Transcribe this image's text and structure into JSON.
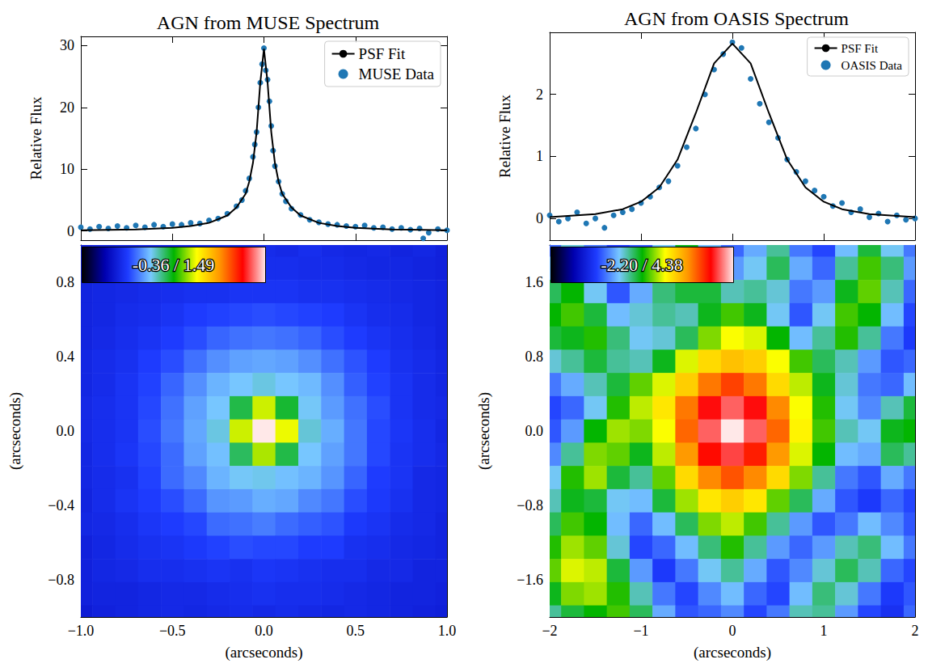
{
  "chart_data": [
    {
      "type": "scatter",
      "title": "AGN from MUSE Spectrum",
      "ylabel": "Relative Flux",
      "xlim": [
        -1,
        1
      ],
      "xticks": [
        -1,
        -0.5,
        0,
        0.5,
        1
      ],
      "ylim": [
        -1.5,
        31.5
      ],
      "yticks": [
        0,
        10,
        20,
        30
      ],
      "tick_labels": "y",
      "legend": "upper right",
      "series": [
        {
          "name": "PSF Fit",
          "type": "line",
          "color": "#000000",
          "x": [
            -1,
            -0.7,
            -0.5,
            -0.4,
            -0.3,
            -0.2,
            -0.15,
            -0.1,
            -0.08,
            -0.06,
            -0.04,
            -0.02,
            0,
            0.02,
            0.04,
            0.06,
            0.08,
            0.1,
            0.15,
            0.2,
            0.3,
            0.4,
            0.5,
            0.7,
            1
          ],
          "values": [
            0.1,
            0.25,
            0.5,
            0.8,
            1.3,
            2.5,
            3.8,
            6,
            8,
            11,
            16,
            24,
            29.5,
            24,
            16,
            11,
            8,
            6,
            3.8,
            2.5,
            1.3,
            0.8,
            0.5,
            0.25,
            0.1
          ]
        },
        {
          "name": "MUSE Data",
          "type": "scatter",
          "color": "#1f77b4",
          "x": [
            -1,
            -0.95,
            -0.9,
            -0.85,
            -0.8,
            -0.75,
            -0.7,
            -0.65,
            -0.6,
            -0.55,
            -0.5,
            -0.45,
            -0.4,
            -0.35,
            -0.3,
            -0.25,
            -0.2,
            -0.15,
            -0.12,
            -0.1,
            -0.08,
            -0.06,
            -0.05,
            -0.04,
            -0.03,
            -0.02,
            -0.01,
            0,
            0.01,
            0.02,
            0.03,
            0.04,
            0.05,
            0.06,
            0.08,
            0.1,
            0.12,
            0.15,
            0.2,
            0.25,
            0.3,
            0.35,
            0.4,
            0.45,
            0.5,
            0.55,
            0.6,
            0.65,
            0.7,
            0.75,
            0.8,
            0.85,
            0.87,
            0.9,
            0.95,
            1
          ],
          "values": [
            0.6,
            0.3,
            0.7,
            0.4,
            0.8,
            0.5,
            0.9,
            0.6,
            1.0,
            0.7,
            1.1,
            1.0,
            1.3,
            1.2,
            1.7,
            2.0,
            2.8,
            4.0,
            5.0,
            6.5,
            8.5,
            12,
            14,
            16,
            20,
            24,
            27,
            29.6,
            26,
            24.5,
            21,
            17,
            13,
            10.5,
            8,
            6,
            4.8,
            3.6,
            2.6,
            1.8,
            1.4,
            1.1,
            1.0,
            0.8,
            0.7,
            0.9,
            0.5,
            0.6,
            0.3,
            0.5,
            0.2,
            0.4,
            -1.2,
            -0.3,
            0.3,
            0.1
          ]
        }
      ]
    },
    {
      "type": "heatmap",
      "xlabel": "(arcseconds)",
      "ylabel": "(arcseconds)",
      "xlim": [
        -1,
        1
      ],
      "xticks": [
        {
          "value": -1,
          "label": "−1.0"
        },
        {
          "value": -0.5,
          "label": "−0.5"
        },
        {
          "value": 0,
          "label": "0.0"
        },
        0.5,
        {
          "value": 1,
          "label": "1.0"
        }
      ],
      "ylim": [
        -1,
        1
      ],
      "yticks": [
        {
          "value": -0.8,
          "label": "−0.8"
        },
        {
          "value": -0.4,
          "label": "−0.4"
        },
        {
          "value": 0,
          "label": "0.0"
        },
        0.4,
        0.8
      ],
      "colorbar_range": [
        -0.36,
        1.49
      ],
      "colorbar_label": "-0.36 / 1.49",
      "x": [
        -1,
        -0.875,
        -0.75,
        -0.625,
        -0.5,
        -0.375,
        -0.25,
        -0.125,
        0,
        0.125,
        0.25,
        0.375,
        0.5,
        0.625,
        0.75,
        0.875,
        1
      ],
      "y": [
        1,
        0.875,
        0.75,
        0.625,
        0.5,
        0.375,
        0.25,
        0.125,
        0,
        -0.125,
        -0.25,
        -0.375,
        -0.5,
        -0.625,
        -0.75,
        -0.875,
        -1
      ],
      "cells": [
        [
          0.0,
          0.01,
          0.02,
          0.03,
          0.02,
          0.03,
          0.04,
          0.03,
          0.04,
          0.03,
          0.05,
          0.03,
          0.02,
          0.03,
          0.01,
          0.02,
          0.0
        ],
        [
          0.0,
          0.01,
          0.02,
          0.02,
          0.03,
          0.04,
          0.04,
          0.05,
          0.05,
          0.05,
          0.04,
          0.04,
          0.03,
          0.02,
          0.02,
          0.01,
          0.0
        ],
        [
          0.01,
          0.02,
          0.03,
          0.04,
          0.05,
          0.06,
          0.06,
          0.07,
          0.07,
          0.07,
          0.06,
          0.06,
          0.05,
          0.04,
          0.03,
          0.02,
          0.01
        ],
        [
          0.01,
          0.02,
          0.04,
          0.05,
          0.07,
          0.1,
          0.11,
          0.12,
          0.13,
          0.12,
          0.11,
          0.1,
          0.07,
          0.05,
          0.04,
          0.02,
          0.01
        ],
        [
          0.01,
          0.03,
          0.05,
          0.07,
          0.1,
          0.13,
          0.17,
          0.19,
          0.2,
          0.19,
          0.17,
          0.13,
          0.1,
          0.07,
          0.05,
          0.03,
          0.01
        ],
        [
          0.02,
          0.04,
          0.06,
          0.1,
          0.13,
          0.19,
          0.24,
          0.27,
          0.28,
          0.27,
          0.24,
          0.19,
          0.14,
          0.1,
          0.06,
          0.04,
          0.02
        ],
        [
          0.02,
          0.04,
          0.07,
          0.11,
          0.17,
          0.24,
          0.3,
          0.33,
          0.36,
          0.33,
          0.31,
          0.24,
          0.16,
          0.11,
          0.07,
          0.04,
          0.02
        ],
        [
          0.03,
          0.05,
          0.07,
          0.12,
          0.19,
          0.27,
          0.33,
          0.5,
          0.75,
          0.52,
          0.34,
          0.26,
          0.19,
          0.13,
          0.07,
          0.04,
          0.03
        ],
        [
          0.03,
          0.05,
          0.07,
          0.13,
          0.2,
          0.28,
          0.36,
          0.75,
          1.49,
          0.78,
          0.37,
          0.29,
          0.2,
          0.12,
          0.08,
          0.05,
          0.02
        ],
        [
          0.02,
          0.05,
          0.08,
          0.12,
          0.18,
          0.27,
          0.32,
          0.48,
          0.72,
          0.5,
          0.33,
          0.27,
          0.2,
          0.12,
          0.07,
          0.05,
          0.03
        ],
        [
          0.02,
          0.04,
          0.06,
          0.11,
          0.18,
          0.23,
          0.3,
          0.34,
          0.35,
          0.32,
          0.3,
          0.25,
          0.17,
          0.1,
          0.07,
          0.03,
          0.02
        ],
        [
          0.01,
          0.04,
          0.07,
          0.1,
          0.13,
          0.18,
          0.25,
          0.26,
          0.29,
          0.28,
          0.23,
          0.2,
          0.13,
          0.09,
          0.06,
          0.03,
          0.02
        ],
        [
          0.02,
          0.03,
          0.05,
          0.08,
          0.1,
          0.12,
          0.18,
          0.19,
          0.21,
          0.18,
          0.16,
          0.14,
          0.09,
          0.07,
          0.04,
          0.03,
          0.01
        ],
        [
          0.0,
          0.02,
          0.04,
          0.06,
          0.07,
          0.09,
          0.11,
          0.13,
          0.12,
          0.12,
          0.1,
          0.1,
          0.06,
          0.05,
          0.03,
          0.02,
          0.01
        ],
        [
          0.0,
          0.02,
          0.03,
          0.05,
          0.05,
          0.06,
          0.07,
          0.06,
          0.08,
          0.07,
          0.06,
          0.05,
          0.05,
          0.03,
          0.03,
          0.01,
          0.01
        ],
        [
          0.0,
          0.01,
          0.01,
          0.02,
          0.03,
          0.03,
          0.04,
          0.05,
          0.06,
          0.05,
          0.05,
          0.04,
          0.03,
          0.02,
          0.01,
          0.01,
          0.0
        ],
        [
          -0.02,
          0.0,
          0.01,
          0.02,
          0.03,
          0.02,
          0.03,
          0.04,
          0.03,
          0.04,
          0.03,
          0.02,
          0.03,
          0.02,
          0.01,
          0.0,
          -0.01
        ]
      ]
    },
    {
      "type": "scatter",
      "title": "AGN from OASIS Spectrum",
      "ylabel": "Relative Flux",
      "xlim": [
        -2,
        2
      ],
      "xticks": [
        -2,
        -1,
        0,
        1,
        2
      ],
      "ylim": [
        -0.35,
        3.0
      ],
      "yticks": [
        0,
        1,
        2
      ],
      "tick_labels": "y",
      "legend": "upper right",
      "series": [
        {
          "name": "PSF Fit",
          "type": "line",
          "color": "#000000",
          "x": [
            -2,
            -1.5,
            -1.2,
            -1,
            -0.8,
            -0.6,
            -0.4,
            -0.2,
            0,
            0.2,
            0.4,
            0.6,
            0.8,
            1,
            1.2,
            1.5,
            2
          ],
          "values": [
            0.02,
            0.07,
            0.15,
            0.27,
            0.5,
            0.95,
            1.7,
            2.5,
            2.82,
            2.5,
            1.7,
            0.95,
            0.5,
            0.27,
            0.15,
            0.07,
            0.02
          ]
        },
        {
          "name": "OASIS Data",
          "type": "scatter",
          "color": "#1f77b4",
          "x": [
            -2,
            -1.9,
            -1.8,
            -1.7,
            -1.6,
            -1.5,
            -1.4,
            -1.3,
            -1.2,
            -1.1,
            -1.0,
            -0.9,
            -0.8,
            -0.7,
            -0.6,
            -0.5,
            -0.4,
            -0.3,
            -0.2,
            -0.1,
            0,
            0.1,
            0.2,
            0.3,
            0.4,
            0.5,
            0.6,
            0.7,
            0.8,
            0.9,
            1.0,
            1.1,
            1.2,
            1.3,
            1.4,
            1.5,
            1.6,
            1.7,
            1.8,
            1.9,
            2.0
          ],
          "values": [
            0.05,
            -0.05,
            0.0,
            0.1,
            -0.08,
            0.0,
            -0.15,
            0.05,
            0.1,
            0.15,
            0.25,
            0.35,
            0.5,
            0.6,
            0.85,
            1.15,
            1.45,
            2.0,
            2.4,
            2.65,
            2.84,
            2.75,
            2.25,
            1.85,
            1.55,
            1.3,
            0.95,
            0.75,
            0.6,
            0.45,
            0.35,
            0.2,
            0.25,
            0.1,
            0.15,
            0.02,
            0.08,
            -0.05,
            0.05,
            -0.02,
            0.0
          ]
        }
      ]
    },
    {
      "type": "heatmap",
      "xlabel": "(arcseconds)",
      "ylabel": "(arcseconds)",
      "xlim": [
        -2,
        2
      ],
      "xticks": [
        {
          "value": -2,
          "label": "−2"
        },
        {
          "value": -1,
          "label": "−1"
        },
        0,
        1,
        2
      ],
      "ylim": [
        -2,
        2
      ],
      "yticks": [
        {
          "value": -1.6,
          "label": "−1.6"
        },
        {
          "value": -0.8,
          "label": "−0.8"
        },
        {
          "value": 0,
          "label": "0.0"
        },
        0.8,
        1.6
      ],
      "colorbar_range": [
        -2.2,
        4.38
      ],
      "colorbar_label": "-2.20 / 4.38",
      "x": [
        -2,
        -1.75,
        -1.5,
        -1.25,
        -1,
        -0.75,
        -0.5,
        -0.25,
        0,
        0.25,
        0.5,
        0.75,
        1,
        1.25,
        1.5,
        1.75,
        2
      ],
      "y": [
        2,
        1.75,
        1.5,
        1.25,
        1,
        0.75,
        0.5,
        0.25,
        0,
        -0.25,
        -0.5,
        -0.75,
        -1,
        -1.25,
        -1.5,
        -1.75,
        -2
      ],
      "cells": [
        [
          -0.3,
          0.4,
          -0.2,
          -0.6,
          -0.4,
          0.3,
          1.0,
          0.2,
          -0.3,
          0.1,
          0.6,
          -0.2,
          -0.5,
          0.2,
          0.9,
          0.3,
          -0.2
        ],
        [
          0.2,
          0.8,
          0.1,
          -0.5,
          -0.2,
          0.5,
          1.2,
          0.6,
          0.0,
          0.3,
          0.8,
          0.1,
          -0.3,
          0.6,
          1.3,
          0.7,
          0.0
        ],
        [
          0.8,
          1.1,
          0.3,
          -0.4,
          0.1,
          0.7,
          0.9,
          0.9,
          0.5,
          0.6,
          0.4,
          -0.2,
          0.0,
          1.0,
          1.4,
          0.5,
          -0.3
        ],
        [
          1.1,
          1.3,
          0.9,
          0.2,
          0.4,
          0.6,
          0.5,
          1.0,
          1.3,
          1.0,
          0.3,
          -0.4,
          0.3,
          1.3,
          1.1,
          0.2,
          -0.5
        ],
        [
          0.9,
          1.0,
          1.2,
          0.7,
          0.3,
          0.4,
          0.8,
          1.5,
          1.9,
          1.8,
          1.1,
          0.2,
          0.6,
          1.2,
          0.6,
          -0.2,
          -0.6
        ],
        [
          0.4,
          0.6,
          0.9,
          0.6,
          0.5,
          1.0,
          1.8,
          2.2,
          2.4,
          2.3,
          1.9,
          1.3,
          0.8,
          0.5,
          0.0,
          -0.4,
          -0.3
        ],
        [
          -0.2,
          0.1,
          0.5,
          0.9,
          1.4,
          1.8,
          2.3,
          2.9,
          3.2,
          2.9,
          2.2,
          1.7,
          1.0,
          0.4,
          -0.2,
          -0.3,
          0.2
        ],
        [
          -0.5,
          -0.3,
          0.3,
          1.2,
          1.7,
          2.1,
          2.9,
          3.6,
          3.9,
          3.6,
          2.8,
          1.9,
          1.2,
          0.3,
          -0.1,
          0.5,
          0.9
        ],
        [
          -0.4,
          0.0,
          1.1,
          1.6,
          1.5,
          1.9,
          3.0,
          3.9,
          4.38,
          3.9,
          3.0,
          2.0,
          1.3,
          0.5,
          0.3,
          1.0,
          1.1
        ],
        [
          -0.1,
          0.6,
          1.5,
          1.4,
          1.0,
          1.7,
          2.7,
          3.5,
          3.8,
          3.4,
          2.7,
          1.8,
          1.1,
          0.2,
          0.1,
          0.8,
          0.6
        ],
        [
          0.3,
          1.2,
          1.6,
          0.9,
          0.6,
          1.4,
          2.2,
          2.8,
          3.1,
          2.8,
          2.2,
          1.5,
          0.6,
          -0.2,
          -0.4,
          0.1,
          -0.2
        ],
        [
          0.5,
          1.0,
          0.9,
          0.3,
          0.2,
          0.9,
          1.6,
          2.1,
          2.3,
          2.1,
          1.4,
          0.8,
          0.1,
          -0.4,
          -0.6,
          -0.3,
          -0.5
        ],
        [
          0.8,
          1.3,
          1.1,
          0.2,
          -0.3,
          0.2,
          0.8,
          1.5,
          1.7,
          1.3,
          0.6,
          0.0,
          -0.4,
          -0.2,
          0.2,
          -0.1,
          -0.4
        ],
        [
          1.2,
          1.6,
          1.4,
          0.4,
          -0.5,
          -0.3,
          0.2,
          0.7,
          1.2,
          0.6,
          0.0,
          -0.3,
          0.0,
          0.5,
          0.7,
          0.2,
          -0.2
        ],
        [
          1.4,
          1.8,
          1.7,
          0.9,
          0.0,
          -0.6,
          -0.2,
          0.3,
          0.6,
          0.1,
          -0.4,
          -0.1,
          0.4,
          0.8,
          0.5,
          -0.3,
          -0.5
        ],
        [
          1.0,
          1.5,
          1.6,
          1.2,
          0.5,
          -0.2,
          -0.5,
          -0.1,
          0.2,
          -0.3,
          -0.5,
          0.2,
          0.7,
          0.4,
          -0.2,
          -0.6,
          -0.4
        ],
        [
          0.6,
          0.9,
          1.1,
          1.3,
          0.8,
          0.1,
          -0.4,
          -0.3,
          -0.1,
          -0.5,
          -0.2,
          0.5,
          0.6,
          0.0,
          -0.5,
          -0.7,
          -0.3
        ]
      ]
    }
  ]
}
